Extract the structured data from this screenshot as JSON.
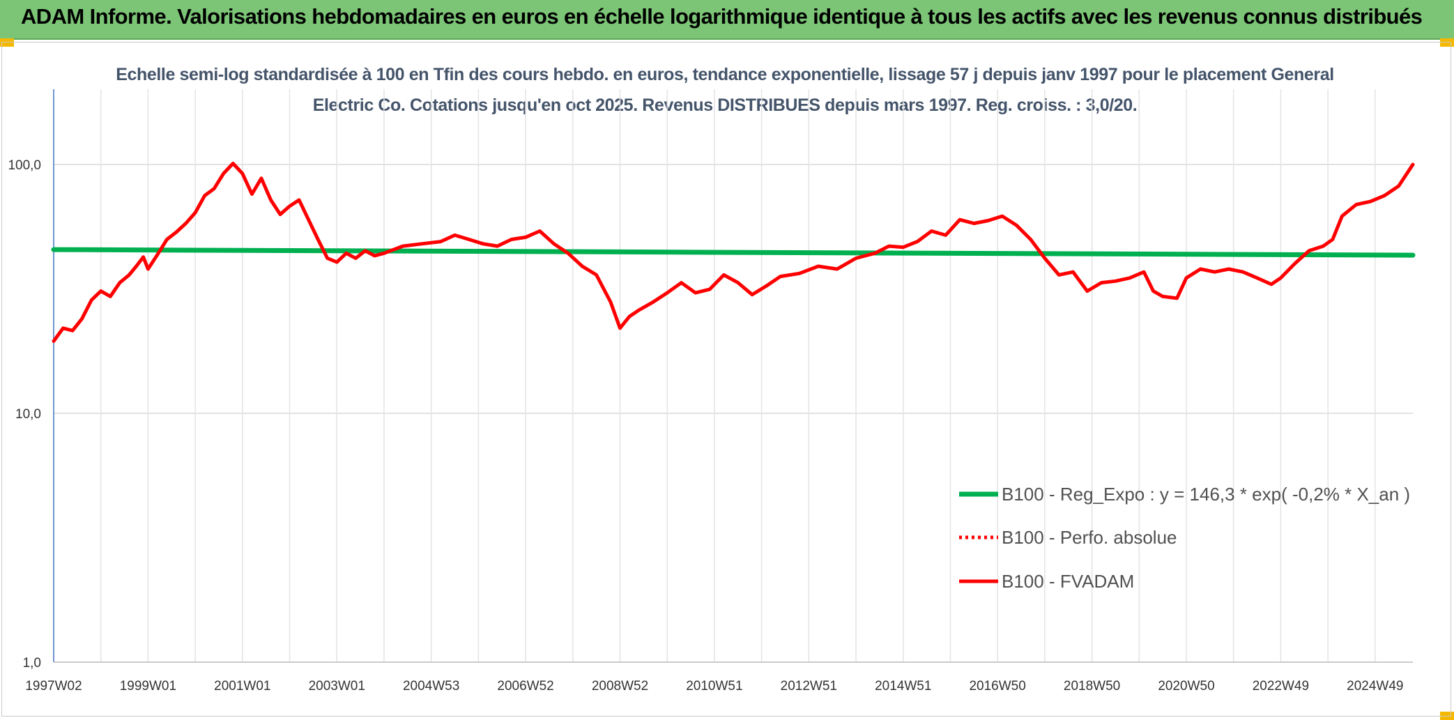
{
  "header": {
    "title": "ADAM Informe. Valorisations hebdomadaires en euros en échelle logarithmique identique à tous les actifs avec les revenus connus distribués"
  },
  "chart_data": {
    "type": "line",
    "title": "Echelle semi-log standardisée à 100 en Tfin des cours hebdo. en euros, tendance exponentielle, lissage 57 j depuis janv 1997 pour le placement General Electric Co. Cotations jusqu'en oct 2025. Revenus DISTRIBUES depuis mars 1997. Reg. croiss. : 3,0/20.",
    "y_scale": "log",
    "ylim": [
      1,
      200
    ],
    "y_ticks": [
      "1,0",
      "10,0",
      "100,0"
    ],
    "x_range": [
      1997.0,
      2025.8
    ],
    "x_tick_labels": [
      "1997W02",
      "1999W01",
      "2001W01",
      "2003W01",
      "2004W53",
      "2006W52",
      "2008W52",
      "2010W51",
      "2012W51",
      "2014W51",
      "2016W50",
      "2018W50",
      "2020W50",
      "2022W49",
      "2024W49"
    ],
    "x_tick_positions": [
      1997.0,
      1999.0,
      2001.0,
      2003.0,
      2005.0,
      2007.0,
      2009.0,
      2011.0,
      2013.0,
      2015.0,
      2017.0,
      2019.0,
      2021.0,
      2023.0,
      2025.0
    ],
    "legend_position": "right-middle",
    "series": [
      {
        "name": "B100 - Reg_Expo : y = 146,3 * exp( -0,2% *  X_an )",
        "color": "#00b050",
        "style": "solid",
        "x": [
          1997.0,
          2025.8
        ],
        "values": [
          45.5,
          43.2
        ]
      },
      {
        "name": "B100 - Perfo. absolue",
        "color": "#ff0000",
        "style": "dotted",
        "x": [],
        "values": []
      },
      {
        "name": "B100 - FVADAM",
        "color": "#ff0000",
        "style": "solid",
        "x": [
          1997.0,
          1997.2,
          1997.4,
          1997.6,
          1997.8,
          1998.0,
          1998.2,
          1998.4,
          1998.6,
          1998.75,
          1998.9,
          1999.0,
          1999.2,
          1999.4,
          1999.6,
          1999.8,
          2000.0,
          2000.2,
          2000.4,
          2000.6,
          2000.8,
          2001.0,
          2001.2,
          2001.4,
          2001.6,
          2001.8,
          2002.0,
          2002.2,
          2002.4,
          2002.6,
          2002.8,
          2003.0,
          2003.2,
          2003.4,
          2003.6,
          2003.8,
          2004.0,
          2004.4,
          2004.8,
          2005.2,
          2005.5,
          2005.8,
          2006.1,
          2006.4,
          2006.7,
          2007.0,
          2007.3,
          2007.6,
          2007.9,
          2008.2,
          2008.5,
          2008.8,
          2009.0,
          2009.2,
          2009.4,
          2009.7,
          2010.0,
          2010.3,
          2010.6,
          2010.9,
          2011.2,
          2011.5,
          2011.8,
          2012.1,
          2012.4,
          2012.8,
          2013.2,
          2013.6,
          2014.0,
          2014.4,
          2014.7,
          2015.0,
          2015.3,
          2015.6,
          2015.9,
          2016.2,
          2016.5,
          2016.8,
          2017.1,
          2017.4,
          2017.7,
          2018.0,
          2018.3,
          2018.6,
          2018.9,
          2019.2,
          2019.5,
          2019.8,
          2020.1,
          2020.3,
          2020.5,
          2020.8,
          2021.0,
          2021.3,
          2021.6,
          2021.9,
          2022.2,
          2022.5,
          2022.8,
          2023.0,
          2023.3,
          2023.6,
          2023.9,
          2024.1,
          2024.3,
          2024.6,
          2024.9,
          2025.2,
          2025.5,
          2025.8
        ],
        "values": [
          19.5,
          22.0,
          21.5,
          24.0,
          28.5,
          31.0,
          29.5,
          33.5,
          36.0,
          39.0,
          42.5,
          38.0,
          43.5,
          50.0,
          53.5,
          58.0,
          64.0,
          75.0,
          80.0,
          92.0,
          101.0,
          92.0,
          76.0,
          88.0,
          72.0,
          63.0,
          68.0,
          72.0,
          60.0,
          50.0,
          42.0,
          40.5,
          44.0,
          42.0,
          45.0,
          43.0,
          44.0,
          47.0,
          48.0,
          49.0,
          52.0,
          50.0,
          48.0,
          47.0,
          50.0,
          51.0,
          54.0,
          48.0,
          44.0,
          39.0,
          36.0,
          28.0,
          22.0,
          24.5,
          26.0,
          28.0,
          30.5,
          33.5,
          30.5,
          31.5,
          36.0,
          33.5,
          30.0,
          32.5,
          35.5,
          36.5,
          39.0,
          38.0,
          42.0,
          44.0,
          47.0,
          46.5,
          49.0,
          54.0,
          52.0,
          60.0,
          58.0,
          59.5,
          62.0,
          57.0,
          50.0,
          42.0,
          36.0,
          37.0,
          31.0,
          33.5,
          34.0,
          35.0,
          37.0,
          31.0,
          29.5,
          29.0,
          35.0,
          38.0,
          37.0,
          38.0,
          37.0,
          35.0,
          33.0,
          35.0,
          40.0,
          45.0,
          47.0,
          50.0,
          62.0,
          69.0,
          71.0,
          75.0,
          82.0,
          100.0
        ]
      }
    ]
  }
}
